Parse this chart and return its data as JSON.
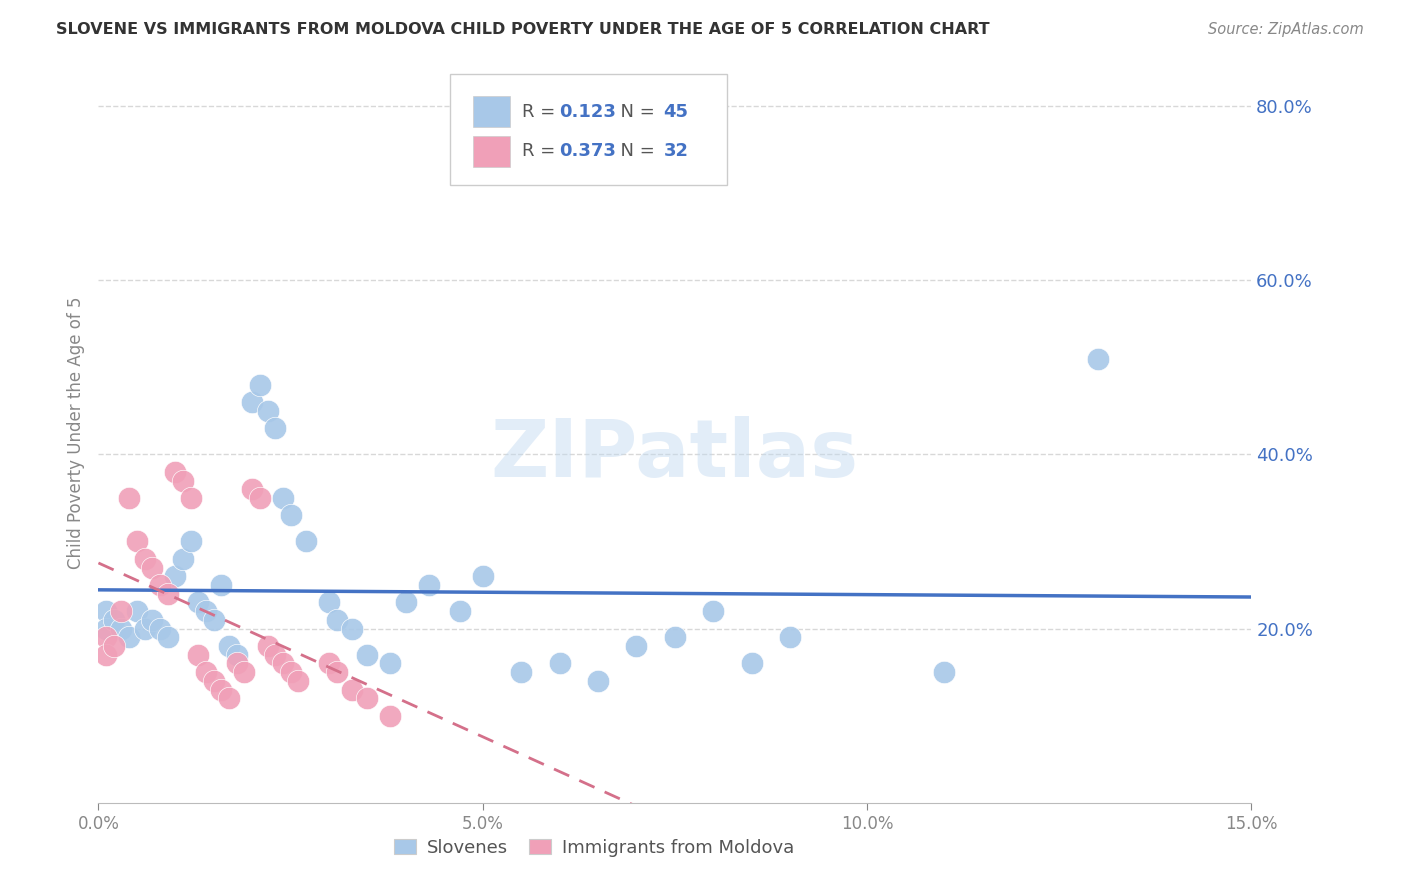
{
  "title": "SLOVENE VS IMMIGRANTS FROM MOLDOVA CHILD POVERTY UNDER THE AGE OF 5 CORRELATION CHART",
  "source": "Source: ZipAtlas.com",
  "ylabel": "Child Poverty Under the Age of 5",
  "xlabel": "",
  "xlim": [
    0.0,
    0.15
  ],
  "ylim": [
    0.0,
    0.85
  ],
  "yticks": [
    0.2,
    0.4,
    0.6,
    0.8
  ],
  "ytick_labels": [
    "20.0%",
    "40.0%",
    "60.0%",
    "80.0%"
  ],
  "xticks": [
    0.0,
    0.05,
    0.1,
    0.15
  ],
  "xtick_labels": [
    "0.0%",
    "5.0%",
    "10.0%",
    "15.0%"
  ],
  "legend_labels": [
    "Slovenes",
    "Immigrants from Moldova"
  ],
  "slovene_color": "#a8c8e8",
  "moldova_color": "#f0a0b8",
  "slovene_line_color": "#4472c4",
  "moldova_line_color": "#d4708a",
  "R_slovene": 0.123,
  "N_slovene": 45,
  "R_moldova": 0.373,
  "N_moldova": 32,
  "slovene_x": [
    0.001,
    0.001,
    0.002,
    0.003,
    0.004,
    0.005,
    0.006,
    0.007,
    0.008,
    0.009,
    0.01,
    0.011,
    0.012,
    0.013,
    0.014,
    0.015,
    0.016,
    0.017,
    0.018,
    0.02,
    0.021,
    0.022,
    0.023,
    0.024,
    0.025,
    0.027,
    0.03,
    0.031,
    0.033,
    0.035,
    0.038,
    0.04,
    0.043,
    0.047,
    0.05,
    0.055,
    0.06,
    0.065,
    0.07,
    0.075,
    0.08,
    0.085,
    0.09,
    0.11,
    0.13
  ],
  "slovene_y": [
    0.22,
    0.2,
    0.21,
    0.2,
    0.19,
    0.22,
    0.2,
    0.21,
    0.2,
    0.19,
    0.26,
    0.28,
    0.3,
    0.23,
    0.22,
    0.21,
    0.25,
    0.18,
    0.17,
    0.46,
    0.48,
    0.45,
    0.43,
    0.35,
    0.33,
    0.3,
    0.23,
    0.21,
    0.2,
    0.17,
    0.16,
    0.23,
    0.25,
    0.22,
    0.26,
    0.15,
    0.16,
    0.14,
    0.18,
    0.19,
    0.22,
    0.16,
    0.19,
    0.15,
    0.51
  ],
  "moldova_x": [
    0.001,
    0.001,
    0.002,
    0.003,
    0.004,
    0.005,
    0.006,
    0.007,
    0.008,
    0.009,
    0.01,
    0.011,
    0.012,
    0.013,
    0.014,
    0.015,
    0.016,
    0.017,
    0.018,
    0.019,
    0.02,
    0.021,
    0.022,
    0.023,
    0.024,
    0.025,
    0.026,
    0.03,
    0.031,
    0.033,
    0.035,
    0.038
  ],
  "moldova_y": [
    0.19,
    0.17,
    0.18,
    0.22,
    0.35,
    0.3,
    0.28,
    0.27,
    0.25,
    0.24,
    0.38,
    0.37,
    0.35,
    0.17,
    0.15,
    0.14,
    0.13,
    0.12,
    0.16,
    0.15,
    0.36,
    0.35,
    0.18,
    0.17,
    0.16,
    0.15,
    0.14,
    0.16,
    0.15,
    0.13,
    0.12,
    0.1
  ],
  "watermark": "ZIPatlas",
  "background_color": "#ffffff",
  "grid_color": "#d8d8d8",
  "title_color": "#333333",
  "source_color": "#888888",
  "ylabel_color": "#888888",
  "tick_color": "#888888",
  "ytick_color": "#4472c4"
}
